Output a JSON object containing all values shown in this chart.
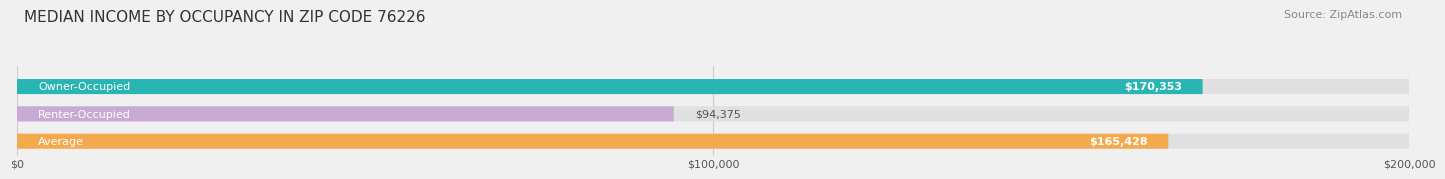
{
  "title": "MEDIAN INCOME BY OCCUPANCY IN ZIP CODE 76226",
  "source": "Source: ZipAtlas.com",
  "categories": [
    "Owner-Occupied",
    "Renter-Occupied",
    "Average"
  ],
  "values": [
    170353,
    94375,
    165428
  ],
  "bar_colors": [
    "#2ab5b5",
    "#c9aad4",
    "#f5a94e"
  ],
  "bar_labels": [
    "$170,353",
    "$94,375",
    "$165,428"
  ],
  "label_inside": [
    true,
    false,
    true
  ],
  "xlim": [
    0,
    200000
  ],
  "xticks": [
    0,
    100000,
    200000
  ],
  "xtick_labels": [
    "$0",
    "$100,000",
    "$200,000"
  ],
  "background_color": "#f0f0f0",
  "bar_bg_color": "#e0e0e0",
  "title_fontsize": 11,
  "source_fontsize": 8,
  "label_fontsize": 8,
  "category_fontsize": 8
}
